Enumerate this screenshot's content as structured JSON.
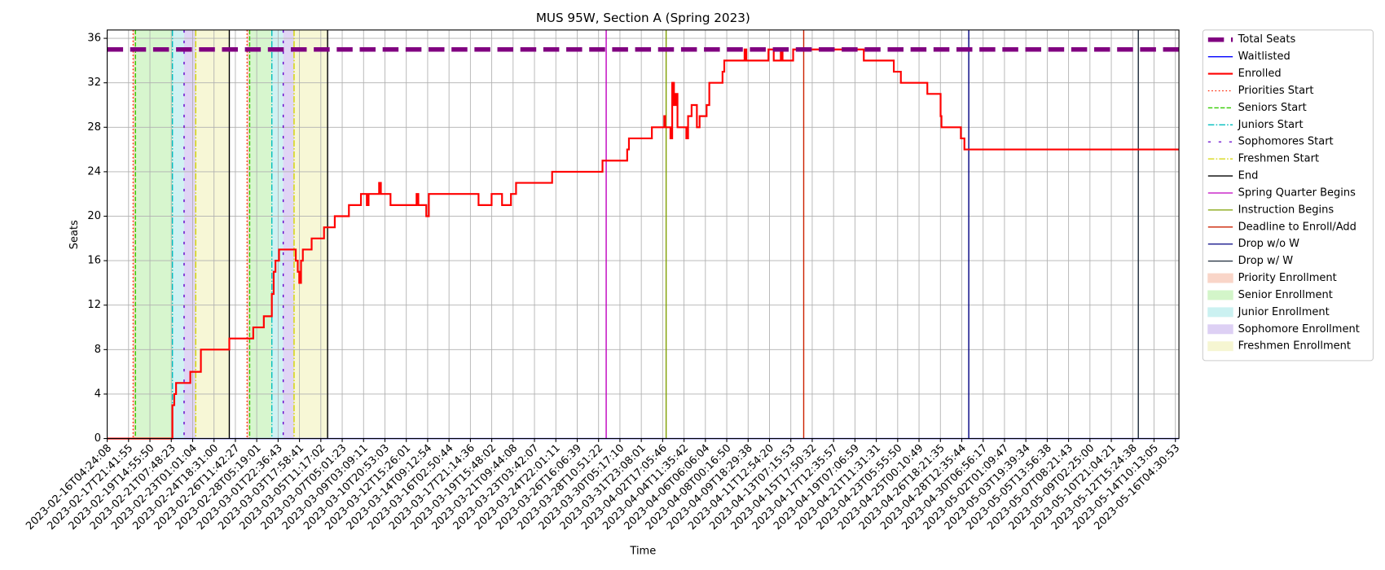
{
  "chart_data": {
    "type": "line",
    "title": "MUS 95W, Section A (Spring 2023)",
    "xlabel": "Time",
    "ylabel": "Seats",
    "grid": true,
    "legend": "outside right",
    "ylim": [
      0,
      36.75
    ],
    "yticks": [
      0,
      4,
      8,
      12,
      16,
      20,
      24,
      28,
      32,
      36
    ],
    "xlim": [
      "2023-02-16T04:24:08",
      "2023-05-16T11:30:00"
    ],
    "xticks": [
      "2023-02-16T04:24:08",
      "2023-02-17T21:41:55",
      "2023-02-19T14:55:50",
      "2023-02-21T07:48:23",
      "2023-02-23T01:01:04",
      "2023-02-24T18:31:00",
      "2023-02-26T11:42:27",
      "2023-02-28T05:19:01",
      "2023-03-01T22:36:43",
      "2023-03-03T17:58:41",
      "2023-03-05T11:17:02",
      "2023-03-07T05:01:23",
      "2023-03-09T03:09:11",
      "2023-03-10T20:53:03",
      "2023-03-12T15:26:01",
      "2023-03-14T09:12:54",
      "2023-03-16T02:50:44",
      "2023-03-17T21:14:36",
      "2023-03-19T15:48:02",
      "2023-03-21T09:44:08",
      "2023-03-23T03:42:07",
      "2023-03-24T22:01:11",
      "2023-03-26T16:06:39",
      "2023-03-28T10:51:22",
      "2023-03-30T05:17:10",
      "2023-03-31T23:08:01",
      "2023-04-02T17:05:46",
      "2023-04-04T11:35:42",
      "2023-04-06T06:06:04",
      "2023-04-08T00:16:50",
      "2023-04-09T18:29:38",
      "2023-04-11T12:54:20",
      "2023-04-13T07:15:53",
      "2023-04-15T17:50:32",
      "2023-04-17T12:35:57",
      "2023-04-19T07:06:59",
      "2023-04-21T11:31:31",
      "2023-04-23T05:55:50",
      "2023-04-25T00:10:49",
      "2023-04-26T18:21:35",
      "2023-04-28T12:35:44",
      "2023-04-30T06:56:17",
      "2023-05-02T01:09:47",
      "2023-05-03T19:39:34",
      "2023-05-05T13:56:38",
      "2023-05-07T08:21:43",
      "2023-05-09T02:25:00",
      "2023-05-10T21:04:21",
      "2023-05-12T15:24:38",
      "2023-05-14T10:13:05",
      "2023-05-16T04:30:53"
    ],
    "series": [
      {
        "name": "Total Seats",
        "color": "#800080",
        "style": "thick dashed",
        "x": [
          "2023-02-16T04:24:08",
          "2023-05-16T11:30:00"
        ],
        "values": [
          35,
          35
        ]
      },
      {
        "name": "Waitlisted",
        "color": "#0000ff",
        "style": "solid",
        "x": [
          "2023-02-16T04:24:08",
          "2023-05-16T11:30:00"
        ],
        "values": [
          0,
          0
        ]
      },
      {
        "name": "Enrolled",
        "color": "#ff0000",
        "style": "thick solid",
        "x": [
          "2023-02-16T04:24:08",
          "2023-02-21T10:00:00",
          "2023-02-21T13:30:00",
          "2023-02-21T17:00:00",
          "2023-02-22T20:30:00",
          "2023-02-23T17:00:00",
          "2023-02-26T00:00:00",
          "2023-02-27T22:30:00",
          "2023-02-28T19:00:00",
          "2023-03-01T10:30:00",
          "2023-03-01T14:00:00",
          "2023-03-01T17:30:00",
          "2023-03-02T00:30:00",
          "2023-03-03T10:30:00",
          "2023-03-03T14:30:00",
          "2023-03-03T17:30:00",
          "2023-03-03T21:00:00",
          "2023-03-04T00:30:00",
          "2023-03-04T17:30:00",
          "2023-03-05T17:30:00",
          "2023-03-06T14:30:00",
          "2023-03-07T19:30:00",
          "2023-03-08T21:30:00",
          "2023-03-09T09:30:00",
          "2023-03-09T13:00:00",
          "2023-03-10T09:30:00",
          "2023-03-10T13:00:00",
          "2023-03-11T08:00:00",
          "2023-03-13T11:30:00",
          "2023-03-13T15:00:00",
          "2023-03-14T06:30:00",
          "2023-03-14T11:30:00",
          "2023-03-18T13:30:00",
          "2023-03-19T15:30:00",
          "2023-03-20T12:00:00",
          "2023-03-21T05:30:00",
          "2023-03-21T15:30:00",
          "2023-03-24T14:40:00",
          "2023-03-28T18:40:00",
          "2023-03-30T19:30:00",
          "2023-03-30T22:55:00",
          "2023-04-01T19:55:00",
          "2023-04-02T20:15:00",
          "2023-04-02T22:00:00",
          "2023-04-03T08:35:00",
          "2023-04-03T12:05:00",
          "2023-04-03T15:35:00",
          "2023-04-03T19:05:00",
          "2023-04-03T22:35:00",
          "2023-04-04T16:10:00",
          "2023-04-04T19:40:00",
          "2023-04-05T02:40:00",
          "2023-04-05T13:10:00",
          "2023-04-05T18:35:00",
          "2023-04-06T08:30:00",
          "2023-04-06T13:50:00",
          "2023-04-07T15:55:00",
          "2023-04-07T19:25:00",
          "2023-04-09T11:30:00",
          "2023-04-09T15:00:00",
          "2023-04-11T10:50:00",
          "2023-04-11T21:20:00",
          "2023-04-12T11:20:00",
          "2023-04-12T14:50:00",
          "2023-04-13T13:35:00",
          "2023-04-20T04:50:00",
          "2023-04-22T22:15:00",
          "2023-04-23T12:15:00",
          "2023-04-25T16:35:00",
          "2023-04-26T18:45:00",
          "2023-04-26T20:30:00",
          "2023-04-28T10:50:00",
          "2023-04-28T17:50:00",
          "2023-05-16T11:30:00"
        ],
        "values": [
          0,
          3,
          4,
          5,
          6,
          8,
          9,
          10,
          11,
          13,
          15,
          16,
          17,
          16,
          15,
          14,
          16,
          17,
          18,
          19,
          20,
          21,
          22,
          21,
          22,
          23,
          22,
          21,
          22,
          21,
          20,
          22,
          21,
          22,
          21,
          22,
          23,
          24,
          25,
          26,
          27,
          28,
          29,
          28,
          27,
          32,
          30,
          31,
          28,
          27,
          29,
          30,
          28,
          29,
          30,
          32,
          33,
          34,
          35,
          34,
          35,
          34,
          35,
          34,
          35,
          34,
          33,
          32,
          31,
          29,
          28,
          27,
          26,
          26
        ]
      }
    ],
    "markers": [
      {
        "name": "Priorities Start",
        "color": "#ff2200",
        "style": "dotted",
        "x": [
          "2023-02-18T06:30:00",
          "2023-02-27T10:30:00"
        ]
      },
      {
        "name": "Seniors Start",
        "color": "#33cc00",
        "style": "dashed",
        "x": [
          "2023-02-18T11:00:00",
          "2023-02-27T15:30:00"
        ]
      },
      {
        "name": "Juniors Start",
        "color": "#00bfbf",
        "style": "dashdot",
        "x": [
          "2023-02-21T10:00:00",
          "2023-03-01T10:30:00"
        ]
      },
      {
        "name": "Sophomores Start",
        "color": "#6600cc",
        "style": "loosely dashed",
        "x": [
          "2023-02-22T08:30:00",
          "2023-03-02T09:00:00"
        ]
      },
      {
        "name": "Freshmen Start",
        "color": "#d4d400",
        "style": "dashdot",
        "x": [
          "2023-02-23T07:00:00",
          "2023-03-03T07:00:00"
        ]
      },
      {
        "name": "End",
        "color": "#000000",
        "style": "solid",
        "x": [
          "2023-02-26T00:00:00",
          "2023-03-06T00:30:00"
        ]
      },
      {
        "name": "Spring Quarter Begins",
        "color": "#c000c0",
        "style": "solid",
        "x": [
          "2023-03-29T02:00:00"
        ]
      },
      {
        "name": "Instruction Begins",
        "color": "#7fa000",
        "style": "solid",
        "x": [
          "2023-04-03T00:00:00"
        ]
      },
      {
        "name": "Deadline to Enroll/Add",
        "color": "#cc2200",
        "style": "solid",
        "x": [
          "2023-04-14T18:30:00"
        ]
      },
      {
        "name": "Drop w/o W",
        "color": "#000080",
        "style": "solid",
        "x": [
          "2023-04-29T02:30:00"
        ]
      },
      {
        "name": "Drop w/ W",
        "color": "#1c2a3a",
        "style": "solid",
        "x": [
          "2023-05-13T02:45:00"
        ]
      }
    ],
    "spans": [
      {
        "name": "Priority Enrollment",
        "color": "#f9d5c8"
      },
      {
        "name": "Senior Enrollment",
        "color": "#d3f5c9"
      },
      {
        "name": "Junior Enrollment",
        "color": "#cbf1f1"
      },
      {
        "name": "Sophomore Enrollment",
        "color": "#ddd0f4"
      },
      {
        "name": "Freshmen Enrollment",
        "color": "#f6f6d2"
      }
    ]
  }
}
